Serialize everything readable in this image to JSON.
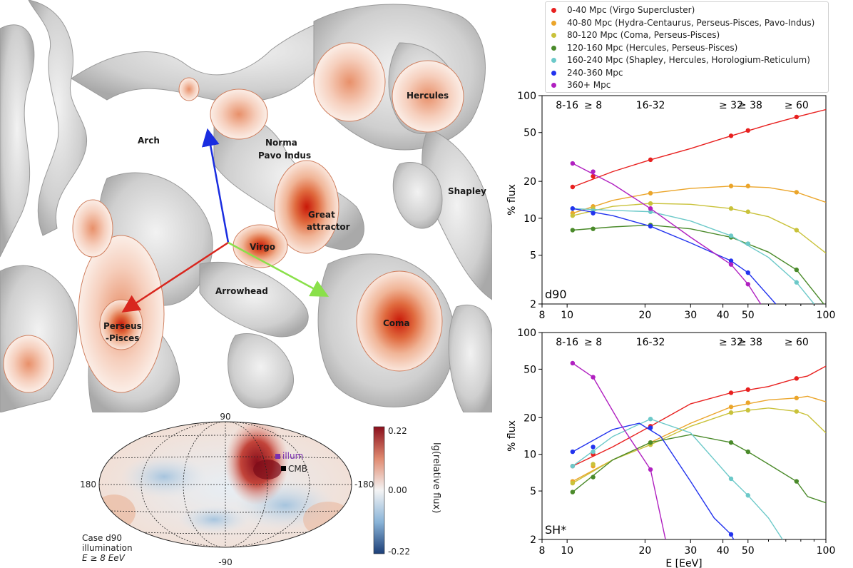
{
  "colors": {
    "0-40": "#e8201f",
    "40-80": "#eba52a",
    "80-120": "#c9c23a",
    "120-160": "#4a8a2a",
    "160-240": "#6cc9c9",
    "240-360": "#2233ee",
    "360+": "#b020c0"
  },
  "legend": {
    "items": [
      {
        "key": "0-40",
        "label": "0-40 Mpc (Virgo Supercluster)"
      },
      {
        "key": "40-80",
        "label": "40-80 Mpc (Hydra-Centaurus, Perseus-Pisces, Pavo-Indus)"
      },
      {
        "key": "80-120",
        "label": "80-120 Mpc (Coma, Perseus-Pisces)"
      },
      {
        "key": "120-160",
        "label": "120-160 Mpc (Hercules, Perseus-Pisces)"
      },
      {
        "key": "160-240",
        "label": "160-240 Mpc (Shapley, Hercules, Horologium-Reticulum)"
      },
      {
        "key": "240-360",
        "label": "240-360 Mpc"
      },
      {
        "key": "360+",
        "label": "360+ Mpc"
      }
    ]
  },
  "render3d": {
    "labels": {
      "arch": "Arch",
      "norma": "Norma",
      "pavo": "Pavo Indus",
      "hercules": "Hercules",
      "shapley": "Shapley",
      "great": "Great",
      "attractor": "attractor",
      "virgo": "Virgo",
      "arrowhead": "Arrowhead",
      "perseus": "Perseus",
      "pisces": "-Pisces",
      "coma": "Coma"
    }
  },
  "skymap": {
    "tick_top": "90",
    "tick_bottom": "-90",
    "tick_left": "180",
    "tick_right": "-180",
    "marker_illum": "illum",
    "marker_cmb": "CMB",
    "caption_line1": "Case d90",
    "caption_line2": "illumination",
    "caption_line3": "E ≥ 8 EeV",
    "colorbar_max": "0.22",
    "colorbar_mid": "0.00",
    "colorbar_min": "-0.22",
    "colorbar_label": "lg(relative flux)"
  },
  "chart_data": [
    {
      "type": "line",
      "panel_label": "d90",
      "xlabel": "",
      "ylabel": "% flux",
      "xscale": "log",
      "yscale": "log",
      "xlim": [
        8,
        100
      ],
      "ylim": [
        2,
        100
      ],
      "xticks": [
        8,
        10,
        20,
        30,
        40,
        50,
        100
      ],
      "xtick_labels": [
        "8",
        "10",
        "20",
        "30",
        "40",
        "50",
        "100"
      ],
      "yticks": [
        2,
        5,
        10,
        20,
        50,
        100
      ],
      "ytick_labels": [
        "2",
        "5",
        "10",
        "20",
        "50",
        "100"
      ],
      "xticks_minor": [
        60,
        70,
        80,
        90
      ],
      "xtick_minor_labels": [
        "",
        "",
        "",
        ""
      ],
      "top_annotations": [
        {
          "x": 10,
          "text": "8-16"
        },
        {
          "x": 12.6,
          "text": "≥ 8"
        },
        {
          "x": 21,
          "text": "16-32"
        },
        {
          "x": 43,
          "text": "≥ 32"
        },
        {
          "x": 51,
          "text": "≥ 38"
        },
        {
          "x": 77,
          "text": "≥ 60"
        }
      ],
      "series": [
        {
          "key": "0-40",
          "x": [
            10.5,
            12.6,
            21,
            43,
            50,
            77
          ],
          "y": [
            18,
            22,
            30,
            47,
            52,
            67
          ],
          "curve_x": [
            10.5,
            15,
            21,
            30,
            43,
            60,
            77,
            100
          ],
          "curve_y": [
            18,
            24,
            30,
            37,
            47,
            58,
            67,
            77
          ]
        },
        {
          "key": "40-80",
          "x": [
            10.5,
            12.6,
            21,
            43,
            50,
            77
          ],
          "y": [
            11,
            12.5,
            16,
            18.3,
            18.3,
            16.3
          ],
          "curve_x": [
            10.5,
            15,
            21,
            30,
            43,
            60,
            77,
            100
          ],
          "curve_y": [
            11,
            14,
            16,
            17.5,
            18.3,
            17.8,
            16.3,
            13.5
          ]
        },
        {
          "key": "80-120",
          "x": [
            10.5,
            12.6,
            21,
            43,
            50,
            77
          ],
          "y": [
            10.5,
            12,
            13.2,
            12,
            11.3,
            8
          ],
          "curve_x": [
            10.5,
            15,
            21,
            30,
            43,
            60,
            77,
            100
          ],
          "curve_y": [
            10.5,
            12.5,
            13.2,
            13,
            12,
            10.3,
            8,
            5.2
          ]
        },
        {
          "key": "120-160",
          "x": [
            10.5,
            12.6,
            21,
            43,
            50,
            77
          ],
          "y": [
            8,
            8.2,
            8.8,
            7,
            6.2,
            3.8
          ],
          "curve_x": [
            10.5,
            15,
            21,
            30,
            43,
            60,
            77,
            100
          ],
          "curve_y": [
            8,
            8.5,
            8.8,
            8.2,
            7,
            5.3,
            3.8,
            1.9
          ]
        },
        {
          "key": "160-240",
          "x": [
            10.5,
            12.6,
            21,
            43,
            50,
            77
          ],
          "y": [
            12,
            11.5,
            11.3,
            7.2,
            6.2,
            3
          ],
          "curve_x": [
            10.5,
            15,
            21,
            30,
            43,
            60,
            77,
            90
          ],
          "curve_y": [
            12,
            11.6,
            11.3,
            9.5,
            7.2,
            4.8,
            3,
            2
          ]
        },
        {
          "key": "240-360",
          "x": [
            10.5,
            12.6,
            21,
            43,
            50
          ],
          "y": [
            12,
            11,
            8.6,
            4.5,
            3.6
          ],
          "curve_x": [
            10.5,
            15,
            21,
            30,
            43,
            50,
            64
          ],
          "curve_y": [
            12,
            10.5,
            8.6,
            6.3,
            4.5,
            3.6,
            2
          ]
        },
        {
          "key": "360+",
          "x": [
            10.5,
            12.6,
            21,
            43,
            50
          ],
          "y": [
            28,
            24,
            12,
            4.2,
            2.9
          ],
          "curve_x": [
            10.5,
            15,
            21,
            30,
            43,
            50,
            56
          ],
          "curve_y": [
            28,
            19,
            12,
            7,
            4.2,
            2.9,
            2
          ]
        }
      ]
    },
    {
      "type": "line",
      "panel_label": "SH*",
      "xlabel": "E [EeV]",
      "ylabel": "% flux",
      "xscale": "log",
      "yscale": "log",
      "xlim": [
        8,
        100
      ],
      "ylim": [
        2,
        100
      ],
      "xticks": [
        8,
        10,
        20,
        30,
        40,
        50,
        100
      ],
      "xtick_labels": [
        "8",
        "10",
        "20",
        "30",
        "40",
        "50",
        "100"
      ],
      "yticks": [
        2,
        5,
        10,
        20,
        50,
        100
      ],
      "ytick_labels": [
        "2",
        "5",
        "10",
        "20",
        "50",
        "100"
      ],
      "xticks_minor": [
        60,
        70,
        80,
        90
      ],
      "xtick_minor_labels": [
        "",
        "",
        "",
        ""
      ],
      "top_annotations": [
        {
          "x": 10,
          "text": "8-16"
        },
        {
          "x": 12.6,
          "text": "≥ 8"
        },
        {
          "x": 21,
          "text": "16-32"
        },
        {
          "x": 43,
          "text": "≥ 32"
        },
        {
          "x": 51,
          "text": "≥ 38"
        },
        {
          "x": 77,
          "text": "≥ 60"
        }
      ],
      "series": [
        {
          "key": "0-40",
          "x": [
            10.5,
            12.6,
            21,
            43,
            50,
            77
          ],
          "y": [
            8,
            10,
            17,
            32,
            34,
            42
          ],
          "curve_x": [
            10.5,
            15,
            21,
            30,
            43,
            60,
            77,
            85,
            100
          ],
          "curve_y": [
            8,
            11.5,
            17,
            26,
            32,
            36,
            42,
            44,
            53
          ]
        },
        {
          "key": "40-80",
          "x": [
            10.5,
            12.6,
            21,
            43,
            50,
            77
          ],
          "y": [
            6,
            8,
            12.5,
            24.5,
            26.5,
            29
          ],
          "curve_x": [
            10.5,
            15,
            21,
            30,
            43,
            60,
            77,
            85,
            100
          ],
          "curve_y": [
            6,
            9,
            12.5,
            18,
            24.5,
            28,
            29,
            30,
            27
          ]
        },
        {
          "key": "80-120",
          "x": [
            10.5,
            12.6,
            21,
            43,
            50,
            77
          ],
          "y": [
            5.8,
            8.3,
            12,
            22,
            23,
            22.5
          ],
          "curve_x": [
            10.5,
            15,
            21,
            30,
            43,
            50,
            60,
            77,
            85,
            100
          ],
          "curve_y": [
            5.8,
            9,
            12,
            17,
            22,
            23,
            24,
            22.5,
            21,
            15
          ]
        },
        {
          "key": "120-160",
          "x": [
            10.5,
            12.6,
            21,
            43,
            50,
            77
          ],
          "y": [
            4.9,
            6.5,
            12.5,
            12.5,
            10.5,
            6
          ],
          "curve_x": [
            10.5,
            15,
            21,
            30,
            43,
            50,
            60,
            77,
            85,
            100
          ],
          "curve_y": [
            4.9,
            9,
            12.5,
            14.5,
            12.5,
            10.5,
            8.3,
            6,
            4.5,
            4
          ]
        },
        {
          "key": "160-240",
          "x": [
            10.5,
            12.6,
            21,
            43,
            50
          ],
          "y": [
            8,
            10.5,
            19.5,
            6.3,
            4.6
          ],
          "curve_x": [
            10.5,
            15,
            21,
            30,
            43,
            50,
            60,
            68
          ],
          "curve_y": [
            8,
            14,
            19.5,
            15,
            6.3,
            4.6,
            3,
            2
          ]
        },
        {
          "key": "240-360",
          "x": [
            10.5,
            12.6,
            21,
            43
          ],
          "y": [
            10.5,
            11.5,
            16.5,
            2.2
          ],
          "curve_x": [
            10.5,
            15,
            19,
            23,
            30,
            37,
            43,
            44
          ],
          "curve_y": [
            10.5,
            16,
            18,
            14,
            6,
            3,
            2.2,
            2
          ]
        },
        {
          "key": "360+",
          "x": [
            10.5,
            12.6,
            21
          ],
          "y": [
            56,
            43,
            7.5
          ],
          "curve_x": [
            10.5,
            12.6,
            16,
            21,
            24
          ],
          "curve_y": [
            56,
            43,
            18,
            7.5,
            2
          ]
        }
      ]
    }
  ]
}
